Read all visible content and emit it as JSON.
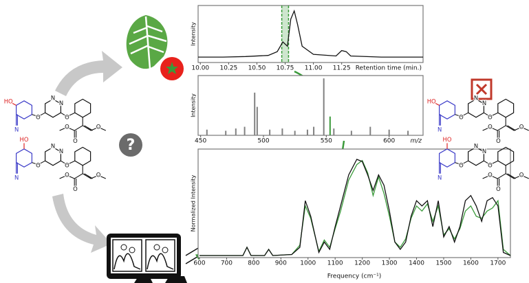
{
  "chart_data": [
    {
      "type": "line",
      "x_label": "Retention time (min.)",
      "y_label": "Intensity",
      "xlim": [
        9.98,
        11.97
      ],
      "ylim": [
        0,
        1.05
      ],
      "xticks": [
        {
          "value": 10,
          "label": "10.00"
        },
        {
          "value": 10.25,
          "label": "10.25"
        },
        {
          "value": 10.5,
          "label": "10.50"
        },
        {
          "value": 10.75,
          "label": "10.75"
        },
        {
          "value": 11,
          "label": "11.00"
        },
        {
          "value": 11.25,
          "label": "11.25"
        }
      ],
      "highlight_x": [
        10.72,
        10.78
      ],
      "highlight_color": "#3a9a3a",
      "x": [
        9.98,
        10.2,
        10.4,
        10.6,
        10.68,
        10.73,
        10.77,
        10.8,
        10.83,
        10.86,
        10.9,
        11.0,
        11.2,
        11.25,
        11.29,
        11.33,
        11.6,
        11.97
      ],
      "series": [
        {
          "color": "#111111",
          "values": [
            0.1,
            0.1,
            0.11,
            0.13,
            0.2,
            0.38,
            0.3,
            0.8,
            0.95,
            0.7,
            0.3,
            0.15,
            0.12,
            0.22,
            0.2,
            0.12,
            0.1,
            0.1
          ]
        }
      ]
    },
    {
      "type": "stem",
      "x_label": "m/z",
      "y_label": "Intensity",
      "xlim": [
        448,
        627
      ],
      "ylim": [
        0,
        1.05
      ],
      "xticks": [
        450,
        500,
        550,
        600
      ],
      "x": [
        455,
        470,
        478,
        485,
        493,
        495,
        505,
        515,
        525,
        535,
        540,
        548,
        553,
        556,
        570,
        585,
        600,
        615
      ],
      "series": [
        {
          "color": "#808080",
          "values": [
            0.1,
            0.08,
            0.12,
            0.15,
            0.75,
            0.5,
            0.1,
            0.12,
            0.08,
            0.1,
            0.15,
            1.0,
            null,
            0.12,
            0.08,
            0.15,
            0.1,
            0.08
          ]
        },
        {
          "color": "#3a9a3a",
          "values": [
            null,
            null,
            null,
            null,
            null,
            null,
            null,
            null,
            null,
            null,
            null,
            null,
            0.33,
            null,
            null,
            null,
            null,
            null
          ]
        }
      ]
    },
    {
      "type": "line",
      "x_label": "Frequency (cm⁻¹)",
      "y_label": "Normalized Intensity",
      "xlim": [
        595,
        1746
      ],
      "ylim": [
        0,
        1.05
      ],
      "xticks": [
        600,
        700,
        800,
        900,
        1000,
        1100,
        1200,
        1300,
        1400,
        1500,
        1600,
        1700
      ],
      "x": [
        600,
        700,
        760,
        775,
        790,
        840,
        855,
        870,
        940,
        970,
        990,
        1010,
        1040,
        1060,
        1080,
        1100,
        1120,
        1150,
        1180,
        1200,
        1220,
        1240,
        1260,
        1280,
        1300,
        1320,
        1340,
        1360,
        1380,
        1400,
        1420,
        1440,
        1460,
        1480,
        1500,
        1520,
        1540,
        1560,
        1580,
        1600,
        1620,
        1640,
        1660,
        1680,
        1700,
        1720,
        1746
      ],
      "series": [
        {
          "color": "#3a9a3a",
          "values": [
            0.02,
            0.02,
            0.02,
            0.1,
            0.02,
            0.02,
            0.08,
            0.02,
            0.03,
            0.12,
            0.5,
            0.38,
            0.06,
            0.17,
            0.1,
            0.28,
            0.45,
            0.75,
            0.9,
            0.94,
            0.82,
            0.6,
            0.78,
            0.62,
            0.4,
            0.15,
            0.1,
            0.18,
            0.38,
            0.5,
            0.45,
            0.52,
            0.35,
            0.5,
            0.22,
            0.28,
            0.18,
            0.28,
            0.45,
            0.5,
            0.4,
            0.38,
            0.45,
            0.48,
            0.55,
            0.08,
            0.02
          ]
        },
        {
          "color": "#111111",
          "values": [
            0.02,
            0.02,
            0.02,
            0.1,
            0.02,
            0.02,
            0.08,
            0.02,
            0.03,
            0.1,
            0.55,
            0.4,
            0.05,
            0.15,
            0.08,
            0.3,
            0.5,
            0.8,
            0.95,
            0.93,
            0.8,
            0.65,
            0.8,
            0.7,
            0.45,
            0.15,
            0.08,
            0.15,
            0.4,
            0.55,
            0.5,
            0.55,
            0.3,
            0.55,
            0.2,
            0.3,
            0.15,
            0.3,
            0.55,
            0.6,
            0.5,
            0.35,
            0.55,
            0.58,
            0.5,
            0.05,
            0.02
          ]
        }
      ]
    }
  ],
  "molecules": [
    {
      "labels": [
        "HO",
        "N",
        "N",
        "N",
        "O",
        "O",
        "O",
        "O",
        "O"
      ]
    },
    {
      "labels": [
        "HO",
        "N",
        "N",
        "N",
        "O",
        "O",
        "O",
        "O",
        "O"
      ]
    },
    {
      "labels": [
        "HO",
        "N",
        "N",
        "N",
        "O",
        "O",
        "O",
        "O",
        "O"
      ]
    },
    {
      "labels": [
        "HO",
        "N",
        "N",
        "N",
        "O",
        "O",
        "O",
        "O",
        "O"
      ]
    }
  ],
  "question_mark": "?"
}
